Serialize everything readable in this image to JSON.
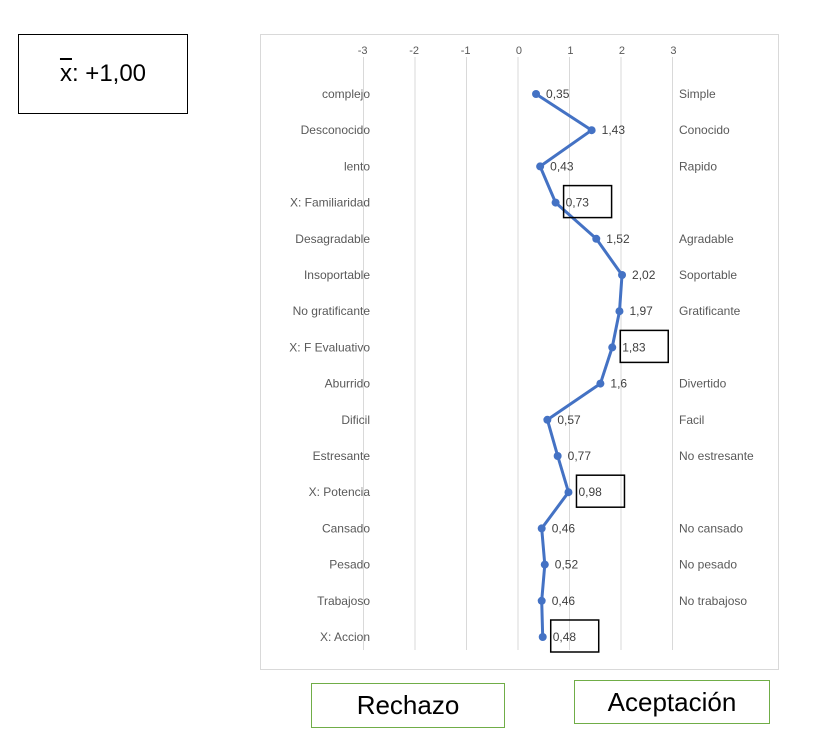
{
  "mean_label": {
    "symbol": "x",
    "value": ": +1,00"
  },
  "tags": {
    "rechazo": "Rechazo",
    "aceptacion": "Aceptación"
  },
  "chart_data": {
    "type": "line",
    "orientation": "horizontal",
    "title": "",
    "xlabel": "",
    "ylabel": "",
    "xlim": [
      -3,
      3
    ],
    "x_ticks": [
      "-3",
      "-2",
      "-1",
      "0",
      "1",
      "2",
      "3"
    ],
    "grid": true,
    "line_color": "#4472c4",
    "rows": [
      {
        "left": "complejo",
        "right": "Simple",
        "value": 0.35,
        "label": "0,35",
        "boxed": false
      },
      {
        "left": "Desconocido",
        "right": "Conocido",
        "value": 1.43,
        "label": "1,43",
        "boxed": false
      },
      {
        "left": "lento",
        "right": "Rapido",
        "value": 0.43,
        "label": "0,43",
        "boxed": false
      },
      {
        "left": "X: Familiaridad",
        "right": "",
        "value": 0.73,
        "label": "0,73",
        "boxed": true
      },
      {
        "left": "Desagradable",
        "right": "Agradable",
        "value": 1.52,
        "label": "1,52",
        "boxed": false
      },
      {
        "left": "Insoportable",
        "right": "Soportable",
        "value": 2.02,
        "label": "2,02",
        "boxed": false
      },
      {
        "left": "No gratificante",
        "right": "Gratificante",
        "value": 1.97,
        "label": "1,97",
        "boxed": false
      },
      {
        "left": "X: F Evaluativo",
        "right": "",
        "value": 1.83,
        "label": "1,83",
        "boxed": true
      },
      {
        "left": "Aburrido",
        "right": "Divertido",
        "value": 1.6,
        "label": "1,6",
        "boxed": false
      },
      {
        "left": "Dificil",
        "right": "Facil",
        "value": 0.57,
        "label": "0,57",
        "boxed": false
      },
      {
        "left": "Estresante",
        "right": "No estresante",
        "value": 0.77,
        "label": "0,77",
        "boxed": false
      },
      {
        "left": "X: Potencia",
        "right": "",
        "value": 0.98,
        "label": "0,98",
        "boxed": true
      },
      {
        "left": "Cansado",
        "right": "No cansado",
        "value": 0.46,
        "label": "0,46",
        "boxed": false
      },
      {
        "left": "Pesado",
        "right": "No pesado",
        "value": 0.52,
        "label": "0,52",
        "boxed": false
      },
      {
        "left": "Trabajoso",
        "right": "No trabajoso",
        "value": 0.46,
        "label": "0,46",
        "boxed": false
      },
      {
        "left": "X: Accion",
        "right": "",
        "value": 0.48,
        "label": "0,48",
        "boxed": true
      }
    ]
  }
}
